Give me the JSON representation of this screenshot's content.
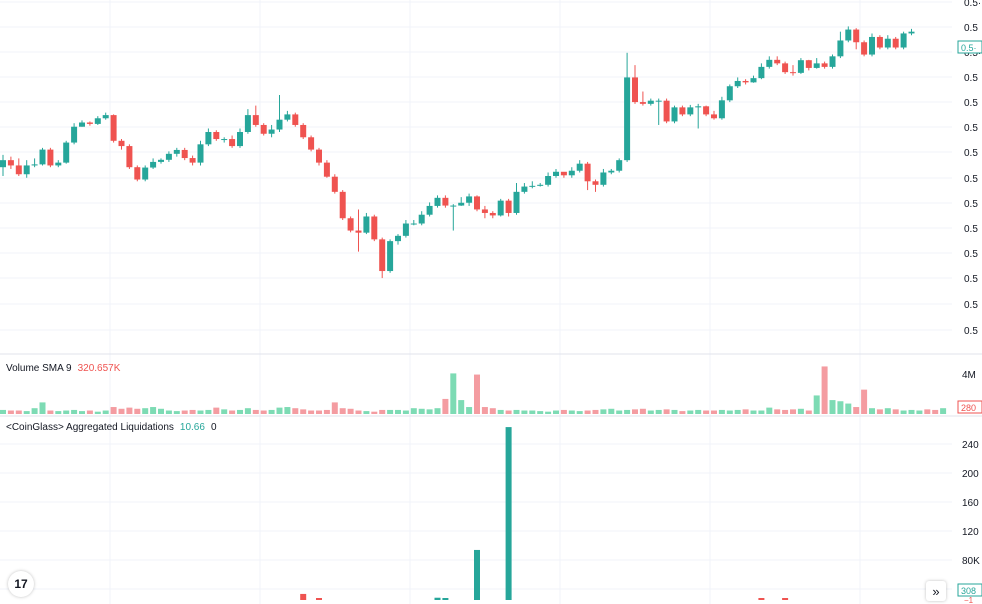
{
  "panes": {
    "volume": {
      "label": "Volume SMA 9",
      "value": "320.657K"
    },
    "liquidations": {
      "label": "<CoinGlass> Aggregated Liquidations",
      "value": "10.66",
      "value2": "0"
    }
  },
  "price_axis": {
    "labels": [
      "0.5·",
      "0.5",
      "0.5·",
      "0.5",
      "0.5",
      "0.5",
      "0.5",
      "0.5",
      "0.5",
      "0.5",
      "0.5",
      "0.5",
      "0.5",
      "0.5"
    ],
    "last_price": "0.5·"
  },
  "volume_axis": {
    "labels": [
      "4M"
    ],
    "last_value": "280"
  },
  "liq_axis": {
    "labels": [
      "240",
      "200",
      "160",
      "120",
      "80K",
      "40K"
    ],
    "last_value": "308",
    "last_value2": "−1"
  },
  "logo": {
    "text": "17"
  },
  "scroll_button": {
    "icon": "double-chevron-right-icon",
    "text": "»"
  },
  "colors": {
    "up": "#26a69a",
    "down": "#ef5350",
    "vol_up": "#7ddbb4",
    "vol_down": "#f49ca1",
    "grid": "#f0f3fa"
  },
  "chart_data": [
    {
      "type": "candlestick",
      "title": "",
      "axis": "price (relative units, 0–100)",
      "ylim": [
        0,
        100
      ],
      "candles": [
        [
          52.5,
          54.5,
          50,
          56
        ],
        [
          54.5,
          53,
          52,
          55.5
        ],
        [
          53,
          50.5,
          50,
          55
        ],
        [
          50.5,
          53,
          49.5,
          54.5
        ],
        [
          53,
          53.3,
          52.5,
          55
        ],
        [
          53.3,
          57.5,
          53,
          58
        ],
        [
          57.5,
          53,
          52.5,
          58
        ],
        [
          53,
          53.8,
          52.5,
          54.5
        ],
        [
          53.8,
          59.5,
          53.5,
          60
        ],
        [
          59.5,
          64,
          59,
          65
        ],
        [
          64,
          65.2,
          64,
          65.8
        ],
        [
          65.2,
          64.8,
          64.3,
          65.5
        ],
        [
          64.8,
          66.4,
          64.5,
          67
        ],
        [
          66.4,
          67.3,
          66,
          68
        ],
        [
          67.3,
          60,
          59.5,
          67.5
        ],
        [
          60,
          58.5,
          57.5,
          60.5
        ],
        [
          58.5,
          52.5,
          52,
          59
        ],
        [
          52.5,
          49,
          48.5,
          53
        ],
        [
          49,
          52.4,
          48.5,
          53
        ],
        [
          52.4,
          54,
          52,
          55
        ],
        [
          54,
          54.6,
          53.5,
          55
        ],
        [
          54.6,
          56.3,
          54,
          57
        ],
        [
          56.3,
          57.4,
          55.5,
          58
        ],
        [
          57.4,
          55.1,
          54.5,
          58
        ],
        [
          55.1,
          53.8,
          53,
          55.8
        ],
        [
          53.8,
          59,
          53,
          60
        ],
        [
          59,
          62.5,
          58.5,
          63.5
        ],
        [
          62.5,
          60.5,
          60,
          63
        ],
        [
          60.5,
          60.5,
          59.5,
          61
        ],
        [
          60.5,
          58.5,
          58,
          61.5
        ],
        [
          58.5,
          62.5,
          58,
          63.5
        ],
        [
          62.5,
          67.3,
          62,
          69
        ],
        [
          67.3,
          64.5,
          64,
          70
        ],
        [
          64.5,
          62,
          61.5,
          65
        ],
        [
          62,
          63.2,
          61,
          64.5
        ],
        [
          63.2,
          66,
          62.5,
          73
        ],
        [
          66,
          67.5,
          65.5,
          68.5
        ],
        [
          67.5,
          64.5,
          64,
          68
        ],
        [
          64.5,
          61,
          60.5,
          65
        ],
        [
          61,
          57.5,
          57,
          61.5
        ],
        [
          57.5,
          53.8,
          53,
          58
        ],
        [
          53.8,
          49.8,
          49.5,
          54.5
        ],
        [
          49.8,
          45.5,
          45,
          50.5
        ],
        [
          45.5,
          38,
          37.5,
          46
        ],
        [
          38,
          34.5,
          34,
          38.5
        ],
        [
          34.5,
          33.9,
          28.5,
          40.5
        ],
        [
          33.9,
          38.5,
          33.5,
          39.5
        ],
        [
          38.5,
          32,
          31.5,
          39
        ],
        [
          32,
          23,
          21,
          32.5
        ],
        [
          23,
          31.5,
          22.5,
          32
        ],
        [
          31.5,
          33,
          30.5,
          33.5
        ],
        [
          33,
          36.5,
          32.5,
          37.5
        ],
        [
          36.5,
          36.5,
          36,
          37.5
        ],
        [
          36.5,
          39,
          36,
          40
        ],
        [
          39,
          41.5,
          38.5,
          42.5
        ],
        [
          41.5,
          43.8,
          41,
          44.5
        ],
        [
          43.8,
          41.6,
          41,
          44.5
        ],
        [
          41.6,
          41.6,
          34.5,
          42
        ],
        [
          41.6,
          42.4,
          41.5,
          44
        ],
        [
          42.4,
          44.2,
          41.5,
          45
        ],
        [
          44.2,
          40.5,
          40,
          44.5
        ],
        [
          40.5,
          39.5,
          38,
          41.5
        ],
        [
          39.5,
          38.8,
          38,
          40
        ],
        [
          38.8,
          43,
          38.5,
          43.5
        ],
        [
          43,
          39.5,
          38.5,
          43.5
        ],
        [
          39.5,
          45.5,
          39,
          48
        ],
        [
          45.5,
          47,
          45,
          48
        ],
        [
          47,
          47.2,
          46.5,
          48.5
        ],
        [
          47.2,
          47.5,
          47,
          48
        ],
        [
          47.5,
          50,
          47,
          51
        ],
        [
          50,
          51.2,
          49.5,
          52
        ],
        [
          51.2,
          50.2,
          49.5,
          51
        ],
        [
          50.2,
          51.5,
          49.5,
          52.5
        ],
        [
          51.5,
          53.5,
          51,
          54.5
        ],
        [
          53.5,
          48.5,
          46,
          54
        ],
        [
          48.5,
          47.5,
          45.5,
          49
        ],
        [
          47.5,
          51,
          47,
          52
        ],
        [
          51,
          51.5,
          50.5,
          52
        ],
        [
          51.5,
          54.5,
          51,
          55
        ],
        [
          54.5,
          78,
          54,
          85
        ],
        [
          78,
          71,
          70.5,
          81.5
        ],
        [
          71,
          70.5,
          70,
          74
        ],
        [
          70.5,
          71.4,
          70,
          72
        ],
        [
          71.4,
          71.4,
          64.5,
          72
        ],
        [
          71.4,
          65.5,
          65,
          72
        ],
        [
          65.5,
          69.5,
          65,
          70
        ],
        [
          69.5,
          67.5,
          67,
          70
        ],
        [
          67.5,
          69.5,
          67,
          70.2
        ],
        [
          69.5,
          69.8,
          63.5,
          70.5
        ],
        [
          69.8,
          67.5,
          67,
          70
        ],
        [
          67.5,
          66.4,
          66,
          68.5
        ],
        [
          66.4,
          71.5,
          66,
          72.5
        ],
        [
          71.5,
          75.5,
          71,
          76
        ],
        [
          75.5,
          77,
          75,
          78
        ],
        [
          77,
          76.6,
          76,
          77.5
        ],
        [
          76.6,
          77.8,
          76.5,
          78.5
        ],
        [
          77.8,
          81,
          77.5,
          82
        ],
        [
          81,
          83,
          80.5,
          84
        ],
        [
          83,
          82,
          81.5,
          84
        ],
        [
          82,
          79.5,
          79,
          82.5
        ],
        [
          79.5,
          79.3,
          78.5,
          81.5
        ],
        [
          79.3,
          82.9,
          79,
          83.5
        ],
        [
          82.9,
          80.7,
          80,
          83
        ],
        [
          80.7,
          82,
          80.5,
          83.5
        ],
        [
          82,
          81,
          80.5,
          82.5
        ],
        [
          81,
          84,
          80.5,
          84.5
        ],
        [
          84,
          88.5,
          83.5,
          91
        ],
        [
          88.5,
          91.6,
          88,
          92.5
        ],
        [
          91.6,
          88,
          86,
          92
        ],
        [
          88,
          84.5,
          84,
          88.5
        ],
        [
          84.5,
          89.5,
          84,
          90.5
        ],
        [
          89.5,
          86.5,
          86,
          90
        ],
        [
          86.5,
          89,
          86,
          90
        ],
        [
          89,
          86.5,
          86,
          89.5
        ],
        [
          86.5,
          90.5,
          86,
          91
        ],
        [
          90.5,
          91,
          90,
          91.8
        ]
      ]
    },
    {
      "type": "bar",
      "title": "Volume SMA 9",
      "ylim": [
        0,
        5
      ],
      "values": [
        0.35,
        0.3,
        0.3,
        0.25,
        0.5,
        1.0,
        0.3,
        0.25,
        0.3,
        0.35,
        0.25,
        0.3,
        0.2,
        0.3,
        0.6,
        0.45,
        0.55,
        0.45,
        0.5,
        0.6,
        0.45,
        0.3,
        0.25,
        0.3,
        0.35,
        0.3,
        0.35,
        0.55,
        0.4,
        0.3,
        0.35,
        0.5,
        0.35,
        0.3,
        0.35,
        0.55,
        0.6,
        0.5,
        0.4,
        0.3,
        0.3,
        0.35,
        1.0,
        0.5,
        0.45,
        0.3,
        0.25,
        0.2,
        0.35,
        0.35,
        0.35,
        0.3,
        0.5,
        0.45,
        0.4,
        0.5,
        1.3,
        3.5,
        1.2,
        0.6,
        3.4,
        0.6,
        0.5,
        0.35,
        0.3,
        0.35,
        0.3,
        0.3,
        0.25,
        0.2,
        0.3,
        0.35,
        0.3,
        0.25,
        0.3,
        0.35,
        0.4,
        0.45,
        0.3,
        0.35,
        0.4,
        0.45,
        0.3,
        0.35,
        0.4,
        0.35,
        0.25,
        0.3,
        0.35,
        0.3,
        0.3,
        0.35,
        0.3,
        0.35,
        0.4,
        0.3,
        0.3,
        0.55,
        0.4,
        0.35,
        0.4,
        0.45,
        0.3,
        1.6,
        4.1,
        1.2,
        1.1,
        0.9,
        0.6,
        2.1,
        0.5,
        0.4,
        0.5,
        0.4,
        0.3,
        0.35,
        0.3,
        0.4,
        0.35,
        0.5
      ]
    },
    {
      "type": "bar",
      "title": "<CoinGlass> Aggregated Liquidations",
      "ylim": [
        0,
        240
      ],
      "series": [
        {
          "values": [
            {
              "i": 38,
              "v": 8,
              "dir": "down"
            },
            {
              "i": 40,
              "v": 2,
              "dir": "down"
            },
            {
              "i": 55,
              "v": 3,
              "dir": "up"
            },
            {
              "i": 56,
              "v": 1,
              "dir": "up"
            },
            {
              "i": 60,
              "v": 66,
              "dir": "up"
            },
            {
              "i": 64,
              "v": 228,
              "dir": "up"
            },
            {
              "i": 96,
              "v": 2,
              "dir": "down"
            },
            {
              "i": 99,
              "v": 2,
              "dir": "down"
            },
            {
              "i": 129,
              "v": 4,
              "dir": "down"
            },
            {
              "i": 131,
              "v": 1,
              "dir": "down"
            },
            {
              "i": 134,
              "v": 1,
              "dir": "down"
            },
            {
              "i": 135,
              "v": 1,
              "dir": "down"
            },
            {
              "i": 136,
              "v": 1,
              "dir": "down"
            },
            {
              "i": 137,
              "v": 1,
              "dir": "down"
            },
            {
              "i": 138,
              "v": 1,
              "dir": "down"
            }
          ]
        }
      ]
    }
  ]
}
